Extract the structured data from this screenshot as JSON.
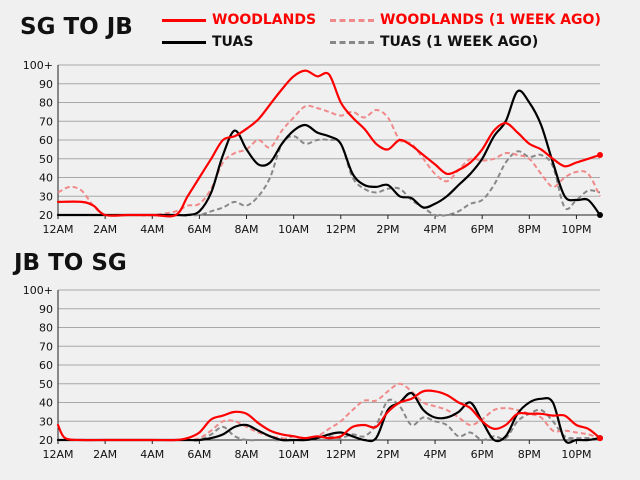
{
  "chart_data": [
    {
      "type": "line",
      "title": "SG TO JB",
      "x_ticks": [
        "12AM",
        "2AM",
        "4AM",
        "6AM",
        "8AM",
        "10AM",
        "12PM",
        "2PM",
        "4PM",
        "6PM",
        "8PM",
        "10PM"
      ],
      "y_ticks": [
        "20",
        "30",
        "40",
        "50",
        "60",
        "70",
        "80",
        "90",
        "100+"
      ],
      "ylim": [
        20,
        100
      ],
      "xlim_hours": [
        0,
        23
      ],
      "grid": true,
      "legend": "top",
      "series": [
        {
          "name": "WOODLANDS",
          "color": "#ff0000",
          "style": "solid",
          "end_marker": true,
          "x": [
            0,
            1,
            1.5,
            2,
            3,
            4,
            5,
            5.5,
            6,
            6.5,
            7,
            7.5,
            8,
            8.5,
            9,
            9.5,
            10,
            10.5,
            11,
            11.5,
            12,
            12.5,
            13,
            13.5,
            14,
            14.5,
            15,
            15.5,
            16,
            16.5,
            17,
            17.5,
            18,
            18.5,
            19,
            19.5,
            20,
            20.5,
            21,
            21.5,
            22,
            22.5,
            23
          ],
          "y": [
            27,
            27,
            25,
            20,
            20,
            20,
            20,
            30,
            40,
            50,
            60,
            62,
            66,
            71,
            79,
            87,
            94,
            97,
            94,
            95,
            80,
            72,
            66,
            58,
            55,
            60,
            57,
            52,
            47,
            42,
            44,
            48,
            55,
            65,
            69,
            64,
            58,
            55,
            50,
            46,
            48,
            50,
            52
          ]
        },
        {
          "name": "TUAS",
          "color": "#000000",
          "style": "solid",
          "end_marker": true,
          "x": [
            0,
            1,
            2,
            3,
            4,
            5,
            5.5,
            6,
            6.5,
            7,
            7.5,
            8,
            8.5,
            9,
            9.5,
            10,
            10.5,
            11,
            11.5,
            12,
            12.5,
            13,
            13.5,
            14,
            14.5,
            15,
            15.5,
            16,
            16.5,
            17,
            17.5,
            18,
            18.5,
            19,
            19.5,
            20,
            20.5,
            21,
            21.5,
            22,
            22.5,
            23
          ],
          "y": [
            20,
            20,
            20,
            20,
            20,
            20,
            20,
            22,
            32,
            52,
            65,
            55,
            47,
            48,
            58,
            65,
            68,
            64,
            62,
            58,
            42,
            36,
            35,
            36,
            30,
            29,
            24,
            26,
            30,
            36,
            42,
            50,
            62,
            70,
            86,
            80,
            68,
            48,
            30,
            28,
            28,
            20
          ]
        },
        {
          "name": "WOODLANDS (1 WEEK AGO)",
          "color": "#f08a8a",
          "style": "dashed",
          "end_marker": false,
          "x": [
            0,
            0.5,
            1,
            1.5,
            2,
            3,
            4,
            5,
            5.5,
            6,
            6.5,
            7,
            7.5,
            8,
            8.5,
            9,
            9.5,
            10,
            10.5,
            11,
            11.5,
            12,
            12.5,
            13,
            13.5,
            14,
            14.5,
            15,
            15.5,
            16,
            16.5,
            17,
            17.5,
            18,
            18.5,
            19,
            19.5,
            20,
            20.5,
            21,
            21.5,
            22,
            22.5,
            23
          ],
          "y": [
            32,
            35,
            33,
            25,
            20,
            20,
            20,
            22,
            25,
            26,
            34,
            48,
            53,
            55,
            60,
            56,
            65,
            72,
            78,
            77,
            75,
            73,
            75,
            72,
            76,
            72,
            60,
            58,
            50,
            42,
            38,
            44,
            50,
            49,
            50,
            53,
            52,
            50,
            42,
            35,
            40,
            43,
            42,
            30
          ]
        },
        {
          "name": "TUAS (1 WEEK AGO)",
          "color": "#888888",
          "style": "dashed",
          "end_marker": false,
          "x": [
            0,
            1,
            2,
            3,
            4,
            5,
            5.5,
            6,
            6.5,
            7,
            7.5,
            8,
            8.5,
            9,
            9.5,
            10,
            10.5,
            11,
            11.5,
            12,
            12.5,
            13,
            13.5,
            14,
            14.5,
            15,
            15.5,
            16,
            16.5,
            17,
            17.5,
            18,
            18.5,
            19,
            19.5,
            20,
            20.5,
            21,
            21.5,
            22,
            22.5,
            23
          ],
          "y": [
            20,
            20,
            20,
            20,
            20,
            20,
            20,
            20,
            22,
            24,
            27,
            25,
            30,
            40,
            58,
            62,
            58,
            60,
            60,
            58,
            40,
            34,
            32,
            34,
            34,
            28,
            24,
            20,
            20,
            22,
            26,
            28,
            36,
            48,
            54,
            51,
            52,
            46,
            24,
            28,
            33,
            32
          ]
        }
      ]
    },
    {
      "type": "line",
      "title": "JB TO SG",
      "x_ticks": [
        "12AM",
        "2AM",
        "4AM",
        "6AM",
        "8AM",
        "10AM",
        "12PM",
        "2PM",
        "4PM",
        "6PM",
        "8PM",
        "10PM"
      ],
      "y_ticks": [
        "20",
        "30",
        "40",
        "50",
        "60",
        "70",
        "80",
        "90",
        "100+"
      ],
      "ylim": [
        20,
        100
      ],
      "xlim_hours": [
        0,
        23
      ],
      "grid": true,
      "legend": "none",
      "series": [
        {
          "name": "WOODLANDS",
          "color": "#ff0000",
          "style": "solid",
          "end_marker": true,
          "x": [
            0,
            0.3,
            1,
            2,
            3,
            4,
            5,
            5.5,
            6,
            6.5,
            7,
            7.5,
            8,
            8.5,
            9,
            9.5,
            10,
            10.5,
            11,
            11.5,
            12,
            12.5,
            13,
            13.5,
            14,
            14.5,
            15,
            15.5,
            16,
            16.5,
            17,
            17.5,
            18,
            18.5,
            19,
            19.5,
            20,
            20.5,
            21,
            21.5,
            22,
            22.5,
            23
          ],
          "y": [
            28,
            21,
            20,
            20,
            20,
            20,
            20,
            21,
            24,
            31,
            33,
            35,
            34,
            29,
            25,
            23,
            22,
            21,
            22,
            21,
            22,
            27,
            28,
            27,
            35,
            40,
            42,
            46,
            46,
            44,
            40,
            37,
            30,
            26,
            28,
            34,
            34,
            34,
            33,
            33,
            28,
            26,
            21
          ]
        },
        {
          "name": "TUAS",
          "color": "#000000",
          "style": "solid",
          "end_marker": true,
          "x": [
            0,
            1,
            2,
            3,
            4,
            5,
            5.5,
            6,
            6.5,
            7,
            7.5,
            8,
            8.5,
            9,
            9.5,
            10,
            10.5,
            11,
            11.5,
            12,
            12.5,
            13,
            13.5,
            14,
            14.5,
            15,
            15.5,
            16,
            16.5,
            17,
            17.5,
            18,
            18.5,
            19,
            19.5,
            20,
            20.5,
            21,
            21.5,
            22,
            22.5,
            23
          ],
          "y": [
            20,
            20,
            20,
            20,
            20,
            20,
            20,
            20,
            21,
            23,
            27,
            28,
            25,
            22,
            20,
            20,
            20,
            21,
            23,
            24,
            22,
            20,
            21,
            36,
            40,
            45,
            36,
            32,
            32,
            35,
            40,
            30,
            20,
            22,
            34,
            40,
            42,
            40,
            20,
            20,
            20,
            21
          ]
        },
        {
          "name": "WOODLANDS (1 WEEK AGO)",
          "color": "#f08a8a",
          "style": "dashed",
          "end_marker": false,
          "x": [
            0,
            1,
            2,
            3,
            4,
            5,
            5.5,
            6,
            6.5,
            7,
            7.5,
            8,
            8.5,
            9,
            9.5,
            10,
            10.5,
            11,
            11.5,
            12,
            12.5,
            13,
            13.5,
            14,
            14.5,
            15,
            15.5,
            16,
            16.5,
            17,
            17.5,
            18,
            18.5,
            19,
            19.5,
            20,
            20.5,
            21,
            21.5,
            22,
            22.5,
            23
          ],
          "y": [
            20,
            20,
            20,
            20,
            20,
            20,
            20,
            21,
            25,
            30,
            30,
            27,
            24,
            22,
            21,
            20,
            21,
            22,
            26,
            30,
            36,
            41,
            41,
            46,
            50,
            46,
            40,
            38,
            36,
            32,
            28,
            31,
            36,
            37,
            36,
            34,
            32,
            25,
            25,
            24,
            23,
            21
          ]
        },
        {
          "name": "TUAS (1 WEEK AGO)",
          "color": "#888888",
          "style": "dashed",
          "end_marker": false,
          "x": [
            0,
            1,
            2,
            3,
            4,
            5,
            5.5,
            6,
            6.5,
            7,
            7.5,
            8,
            8.5,
            9,
            9.5,
            10,
            10.5,
            11,
            11.5,
            12,
            12.5,
            13,
            13.5,
            14,
            14.5,
            15,
            15.5,
            16,
            16.5,
            17,
            17.5,
            18,
            18.5,
            19,
            19.5,
            20,
            20.5,
            21,
            21.5,
            22,
            22.5,
            23
          ],
          "y": [
            20,
            20,
            20,
            20,
            20,
            20,
            20,
            20,
            23,
            27,
            22,
            20,
            20,
            20,
            20,
            22,
            20,
            21,
            22,
            21,
            23,
            22,
            28,
            41,
            38,
            28,
            32,
            30,
            28,
            22,
            24,
            20,
            22,
            21,
            30,
            34,
            36,
            30,
            22,
            21,
            21,
            20
          ]
        }
      ]
    }
  ]
}
